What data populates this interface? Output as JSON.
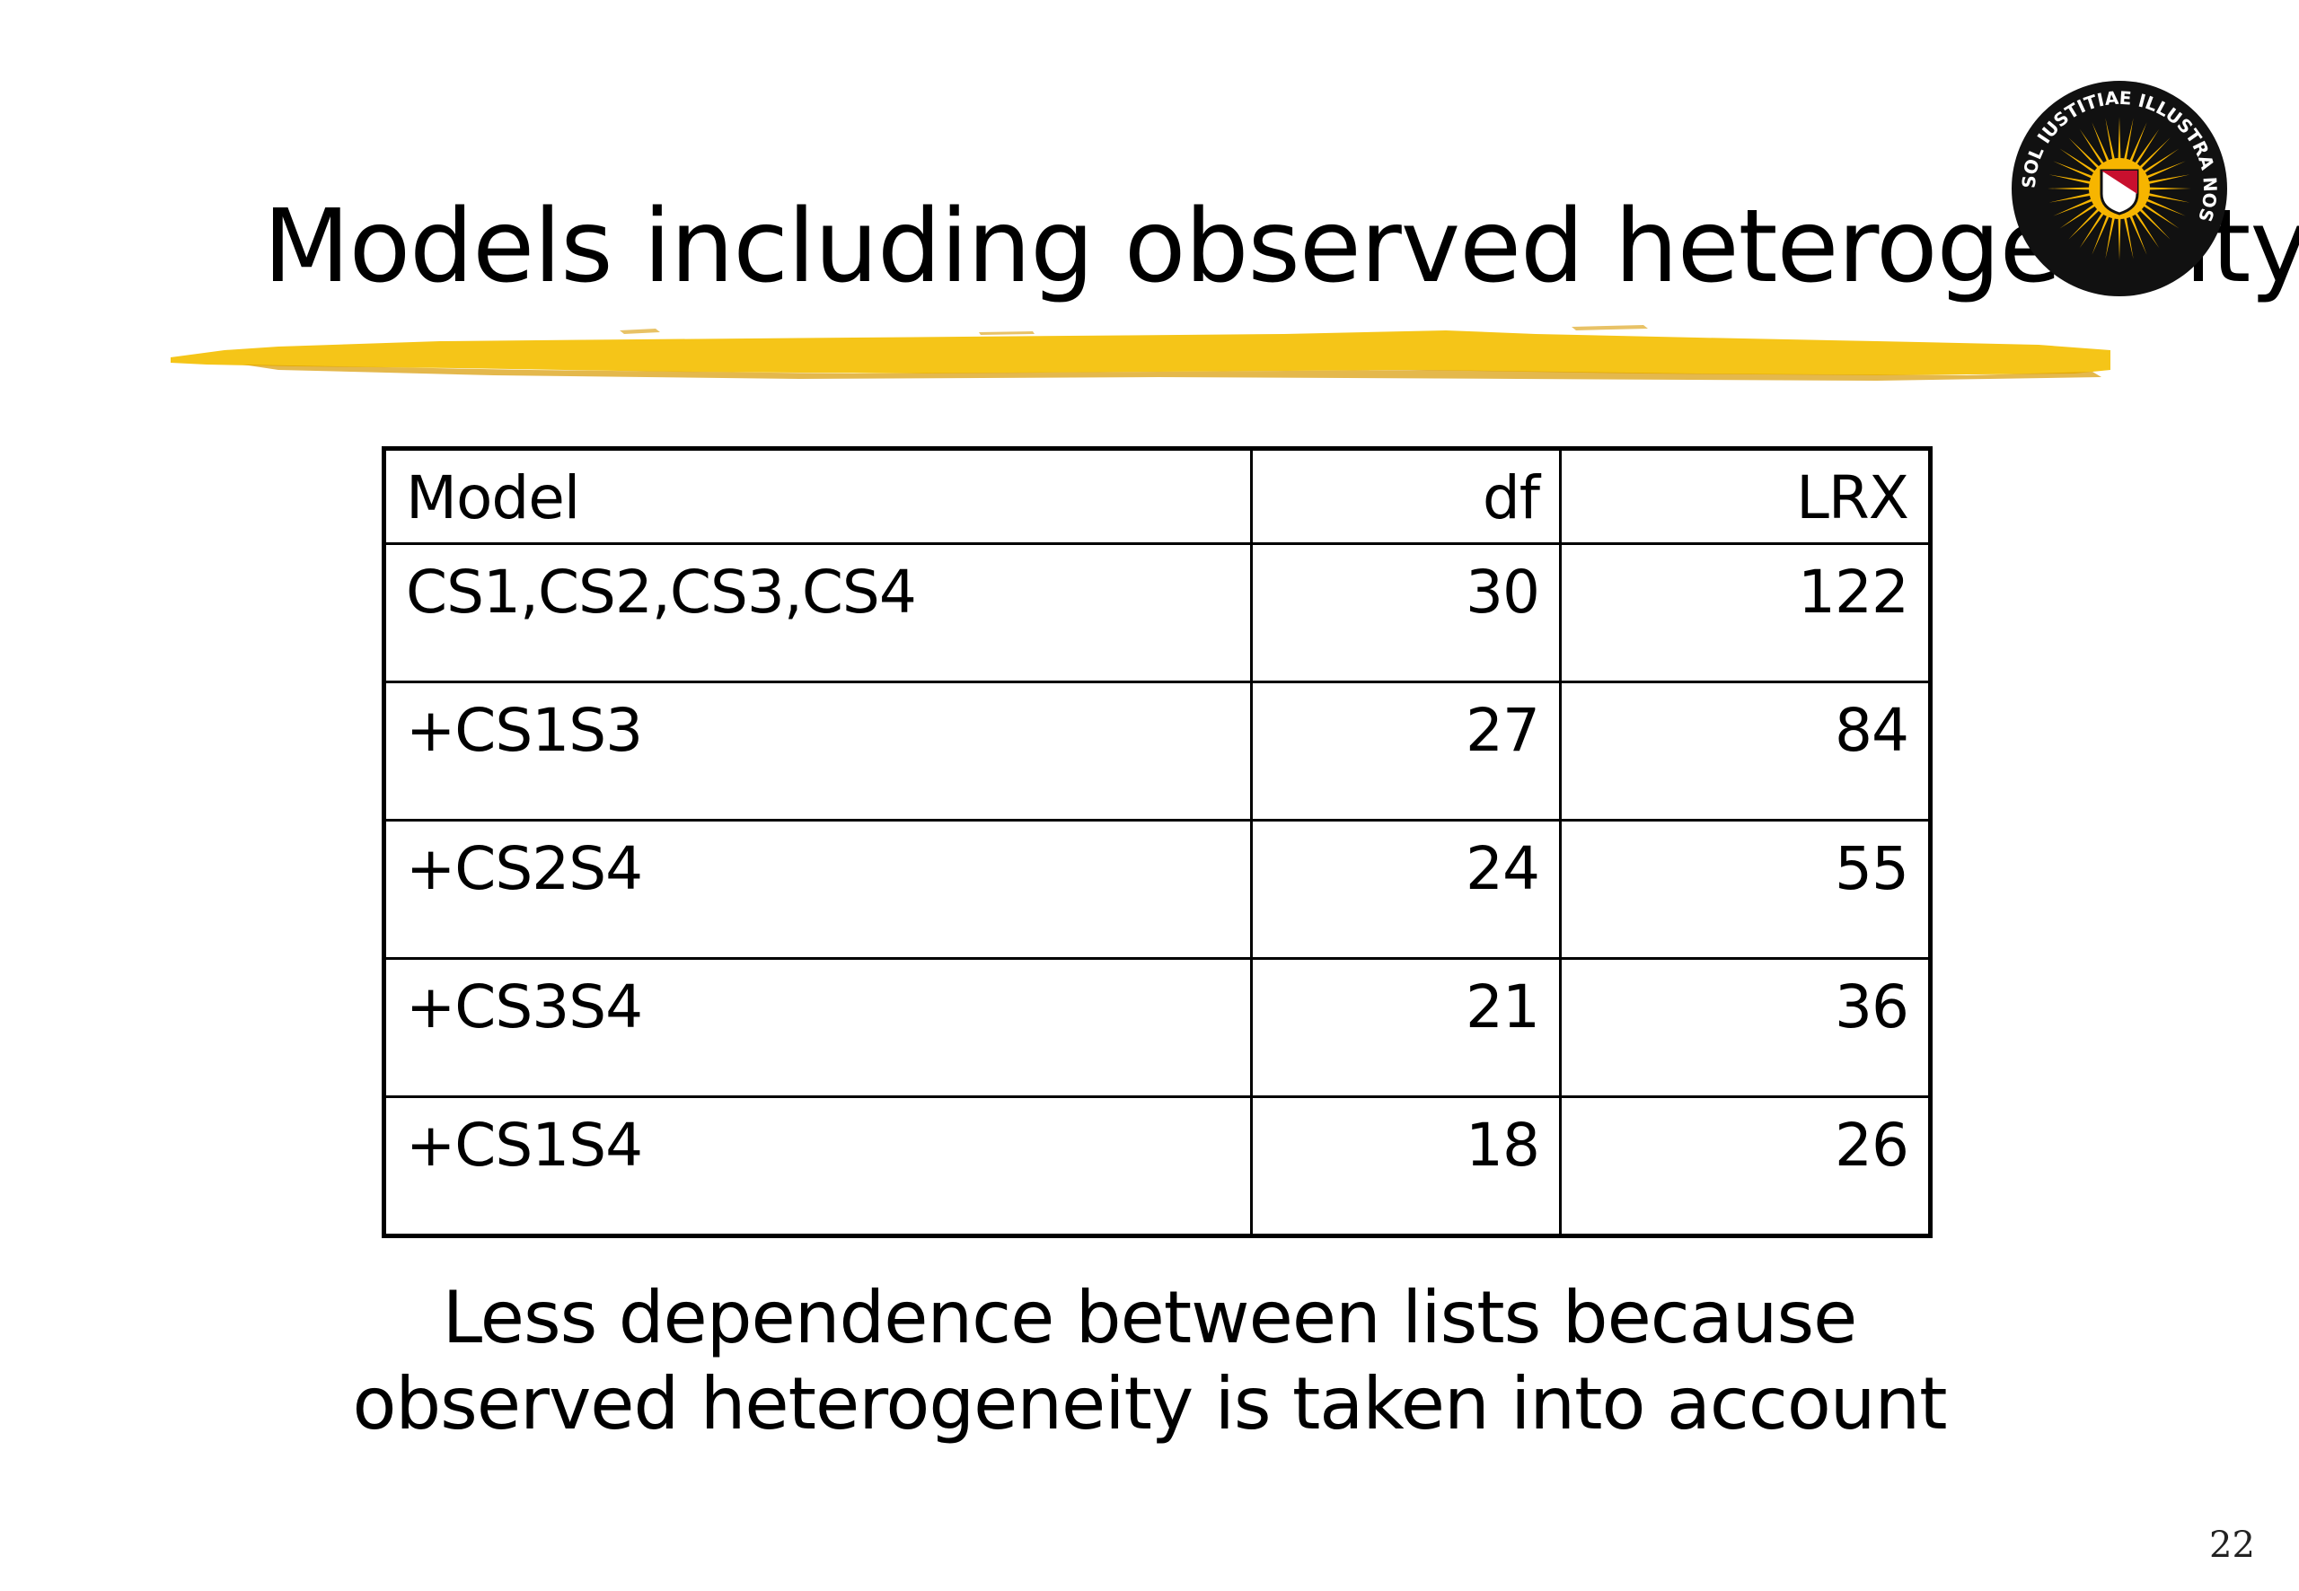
{
  "slide": {
    "title": "Models including observed heterogeneity",
    "page_number": "22"
  },
  "table": {
    "headers": [
      "Model",
      "df",
      "LRX"
    ],
    "rows": [
      [
        "CS1,CS2,CS3,CS4",
        "30",
        "122"
      ],
      [
        "+CS1S3",
        "27",
        "84"
      ],
      [
        "+CS2S4",
        "24",
        "55"
      ],
      [
        "+CS3S4",
        "21",
        "36"
      ],
      [
        "+CS1S4",
        "18",
        "26"
      ]
    ]
  },
  "note": {
    "line1": "Less dependence between lists because",
    "line2": "observed heterogeneity is taken into account"
  },
  "decor": {
    "brush_color": "#f5c518",
    "brush_edge_color": "#d89a00",
    "seal_ray_color": "#f7b500",
    "seal_dark_color": "#111111",
    "seal_shield_color": "#c8102e",
    "seal_icon": "sun-seal-icon",
    "seal_text": "SOL IUSTITIAE ILLUSTRA NOS"
  }
}
